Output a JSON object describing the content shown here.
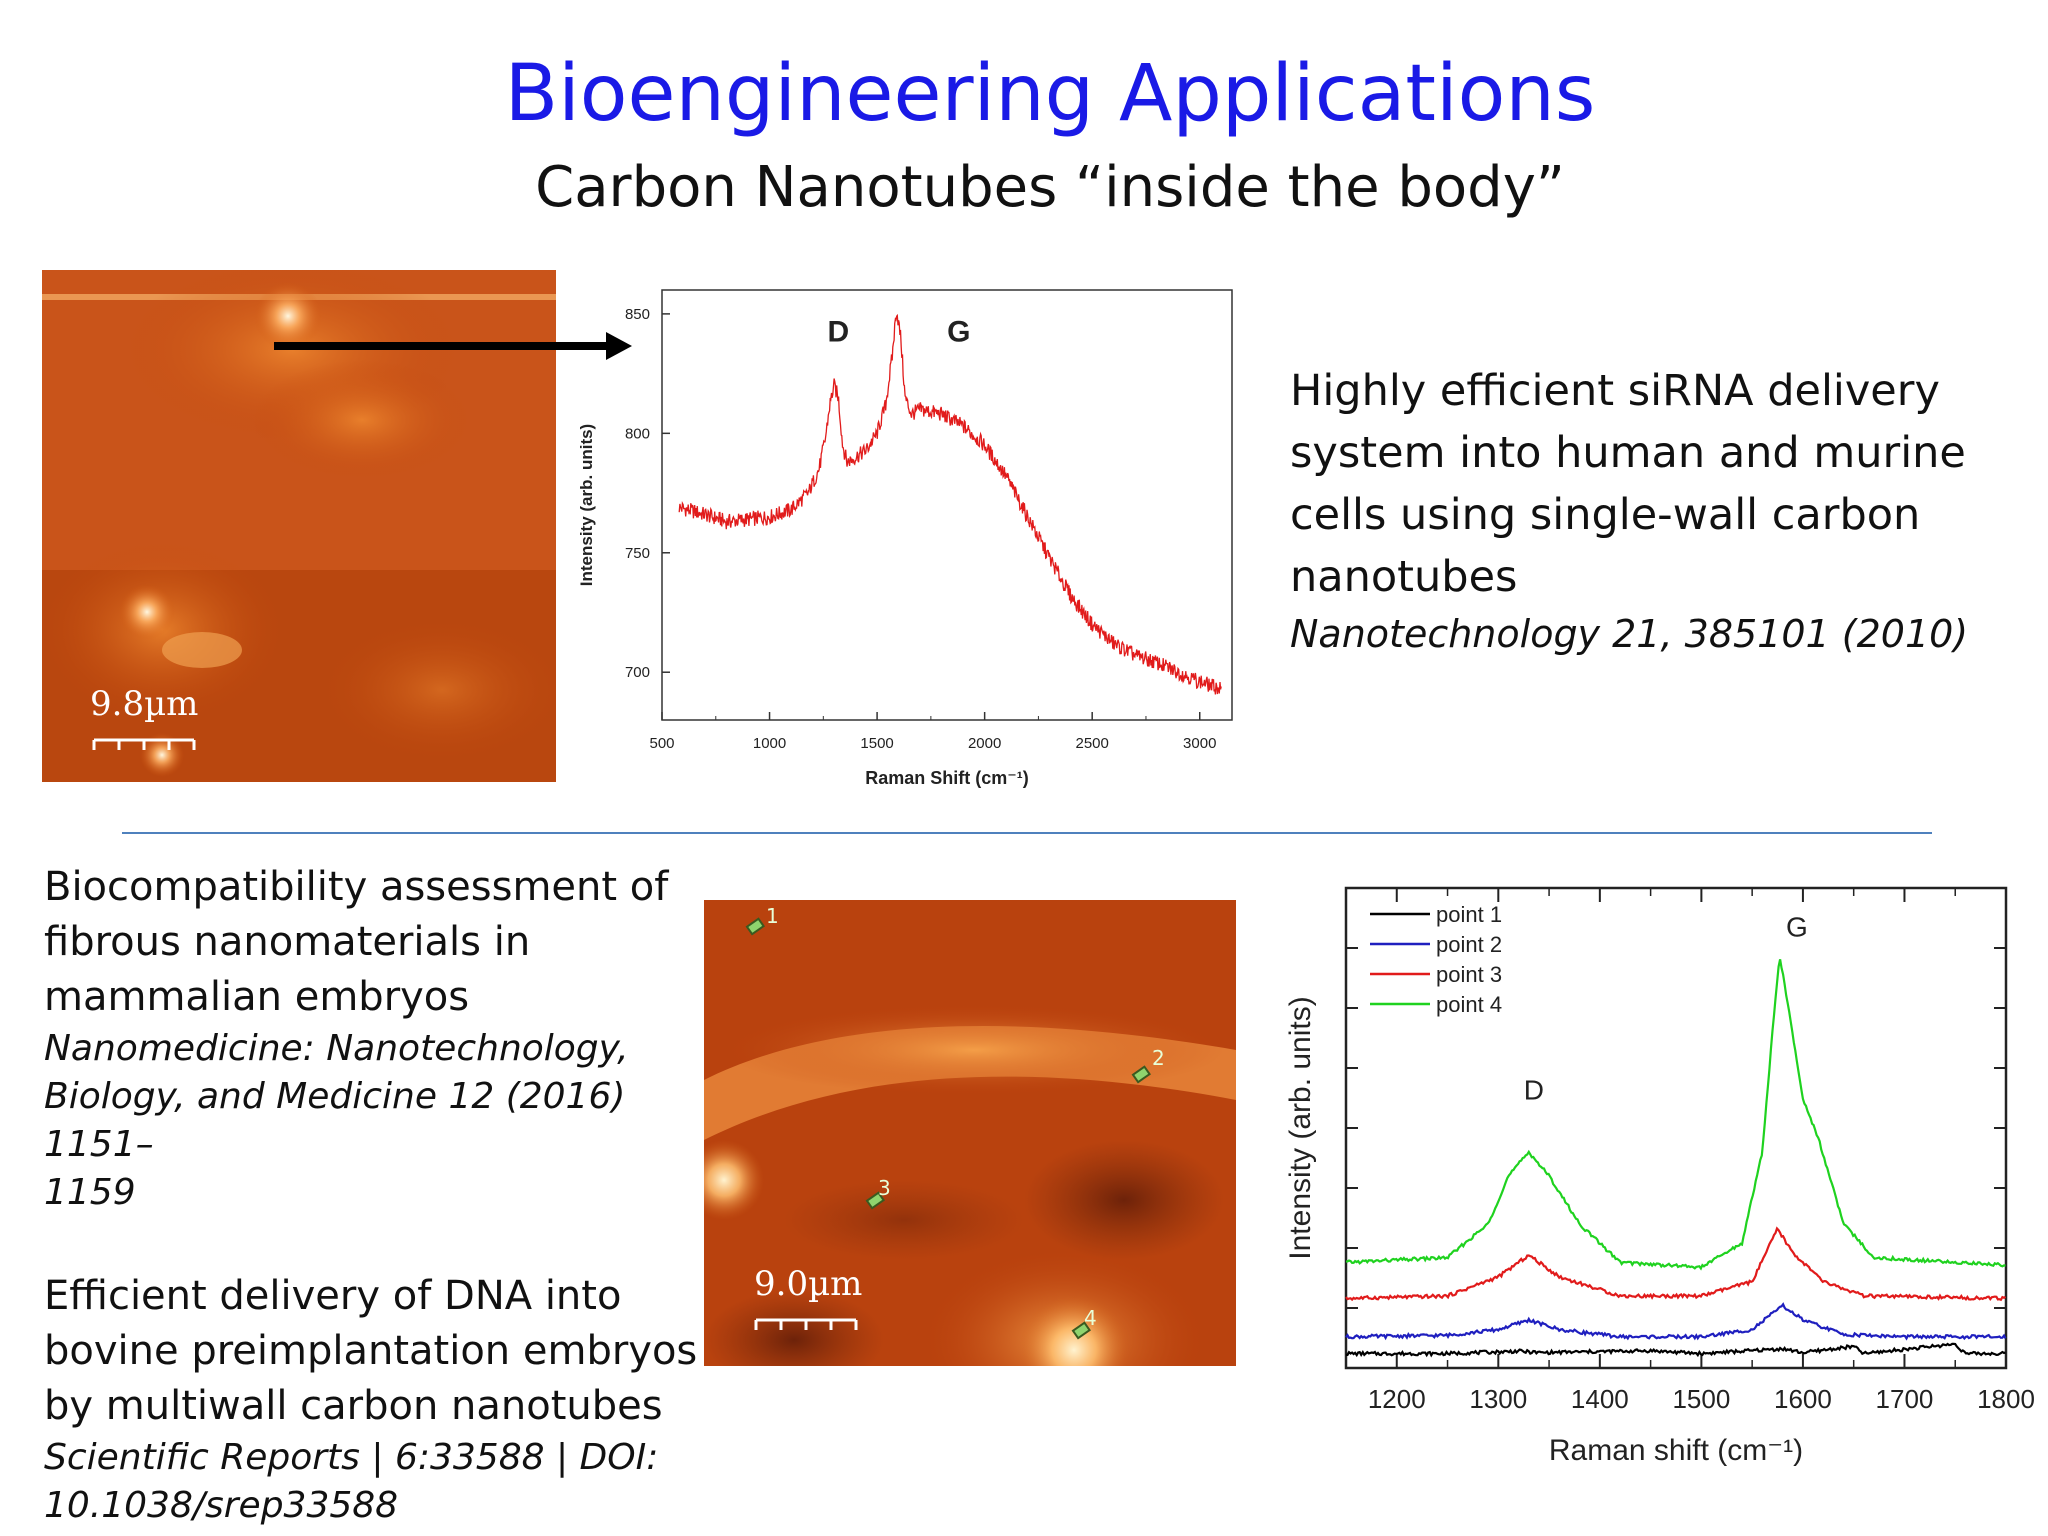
{
  "title": "Bioengineering Applications",
  "subtitle": "Carbon Nanotubes “inside the body”",
  "top_text": {
    "lines": [
      "Highly efficient siRNA delivery",
      "system into human and murine",
      "cells using single-wall carbon",
      "nanotubes"
    ],
    "citation": "Nanotechnology 21, 385101 (2010)"
  },
  "bottom_left_text": {
    "block1_lines": [
      "Biocompatibility assessment of",
      "fibrous nanomaterials in",
      "mammalian embryos"
    ],
    "block1_citation_lines": [
      "Nanomedicine: Nanotechnology,",
      "Biology, and Medicine 12 (2016) 1151–",
      "1159"
    ],
    "block2_lines": [
      "Efficient delivery of DNA into",
      "bovine preimplantation embryos",
      "by multiwall carbon nanotubes"
    ],
    "block2_citation_lines": [
      "Scientific Reports | 6:33588 | DOI:",
      "10.1038/srep33588"
    ]
  },
  "micrograph_top": {
    "scale_label": "9.8µm"
  },
  "micrograph_bottom": {
    "scale_label": "9.0µm",
    "point_labels": [
      "1",
      "2",
      "3",
      "4"
    ]
  },
  "colors": {
    "title": "#1a1ae6",
    "divider": "#4f81bd",
    "spectrum_red": "#e11b1b"
  },
  "chart_data": [
    {
      "type": "line",
      "xlabel": "Raman Shift (cm⁻¹)",
      "ylabel": "Intensity (arb. units)",
      "xlim": [
        500,
        3150
      ],
      "ylim": [
        680,
        860
      ],
      "xticks": [
        500,
        1000,
        1500,
        2000,
        2500,
        3000
      ],
      "yticks": [
        700,
        750,
        800,
        850
      ],
      "annotations": [
        {
          "text": "D",
          "x": 1320,
          "y": 846
        },
        {
          "text": "G",
          "x": 1880,
          "y": 846
        }
      ],
      "series": [
        {
          "color": "#e11b1b",
          "points": [
            [
              580,
              769
            ],
            [
              700,
              766
            ],
            [
              800,
              763
            ],
            [
              900,
              764
            ],
            [
              1000,
              765
            ],
            [
              1100,
              768
            ],
            [
              1180,
              775
            ],
            [
              1230,
              785
            ],
            [
              1260,
              798
            ],
            [
              1280,
              812
            ],
            [
              1300,
              820
            ],
            [
              1320,
              815
            ],
            [
              1340,
              795
            ],
            [
              1360,
              788
            ],
            [
              1400,
              790
            ],
            [
              1450,
              793
            ],
            [
              1500,
              800
            ],
            [
              1540,
              812
            ],
            [
              1570,
              832
            ],
            [
              1590,
              852
            ],
            [
              1610,
              840
            ],
            [
              1630,
              815
            ],
            [
              1660,
              808
            ],
            [
              1700,
              810
            ],
            [
              1800,
              808
            ],
            [
              1900,
              803
            ],
            [
              2000,
              795
            ],
            [
              2100,
              782
            ],
            [
              2200,
              765
            ],
            [
              2300,
              748
            ],
            [
              2400,
              732
            ],
            [
              2500,
              720
            ],
            [
              2600,
              712
            ],
            [
              2700,
              707
            ],
            [
              2800,
              704
            ],
            [
              2900,
              700
            ],
            [
              3000,
              696
            ],
            [
              3100,
              693
            ]
          ]
        }
      ]
    },
    {
      "type": "line",
      "xlabel": "Raman shift (cm⁻¹)",
      "ylabel": "Intensity (arb. units)",
      "xlim": [
        1150,
        1800
      ],
      "ylim": [
        0,
        100
      ],
      "xticks": [
        1200,
        1300,
        1400,
        1500,
        1600,
        1700,
        1800
      ],
      "annotations": [
        {
          "text": "D",
          "x": 1335,
          "y": 58
        },
        {
          "text": "G",
          "x": 1594,
          "y": 92
        }
      ],
      "legend": "top-left",
      "series": [
        {
          "name": "point 1",
          "color": "#000000",
          "points": [
            [
              1150,
              3
            ],
            [
              1250,
              3
            ],
            [
              1320,
              3.5
            ],
            [
              1340,
              3.2
            ],
            [
              1450,
              3.6
            ],
            [
              1500,
              3
            ],
            [
              1580,
              4
            ],
            [
              1600,
              3.2
            ],
            [
              1650,
              4.5
            ],
            [
              1660,
              3
            ],
            [
              1750,
              5
            ],
            [
              1760,
              3
            ],
            [
              1800,
              3
            ]
          ]
        },
        {
          "name": "point 2",
          "color": "#1f1fbf",
          "points": [
            [
              1150,
              6.5
            ],
            [
              1250,
              6.8
            ],
            [
              1300,
              8
            ],
            [
              1330,
              10
            ],
            [
              1360,
              8
            ],
            [
              1420,
              6.5
            ],
            [
              1500,
              6.5
            ],
            [
              1550,
              8
            ],
            [
              1580,
              13
            ],
            [
              1600,
              10
            ],
            [
              1640,
              7
            ],
            [
              1700,
              6.5
            ],
            [
              1800,
              6.5
            ]
          ]
        },
        {
          "name": "point 3",
          "color": "#e11b1b",
          "points": [
            [
              1150,
              14.5
            ],
            [
              1250,
              15
            ],
            [
              1300,
              19
            ],
            [
              1330,
              23.5
            ],
            [
              1360,
              19
            ],
            [
              1420,
              15
            ],
            [
              1500,
              15
            ],
            [
              1550,
              18
            ],
            [
              1575,
              29
            ],
            [
              1590,
              24
            ],
            [
              1620,
              18
            ],
            [
              1660,
              15
            ],
            [
              1800,
              14.5
            ]
          ]
        },
        {
          "name": "point 4",
          "color": "#1fd21f",
          "points": [
            [
              1150,
              22
            ],
            [
              1250,
              23
            ],
            [
              1290,
              30
            ],
            [
              1310,
              40
            ],
            [
              1330,
              45
            ],
            [
              1350,
              40
            ],
            [
              1380,
              30
            ],
            [
              1420,
              22
            ],
            [
              1500,
              21
            ],
            [
              1540,
              26
            ],
            [
              1560,
              45
            ],
            [
              1570,
              70
            ],
            [
              1577,
              86
            ],
            [
              1585,
              76
            ],
            [
              1600,
              56
            ],
            [
              1615,
              48
            ],
            [
              1640,
              30
            ],
            [
              1670,
              23
            ],
            [
              1750,
              22
            ],
            [
              1800,
              21.5
            ]
          ]
        }
      ]
    }
  ]
}
